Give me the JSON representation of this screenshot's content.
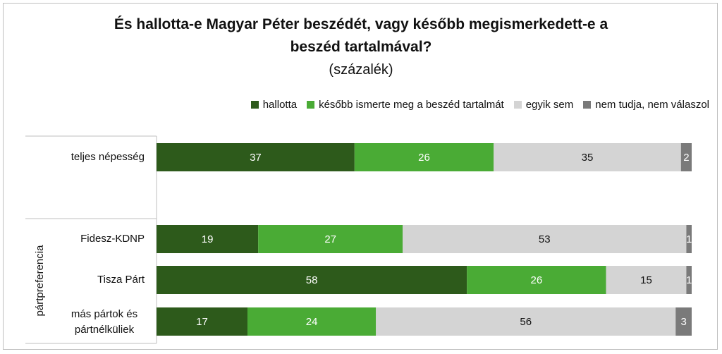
{
  "title_line1": "És hallotta-e Magyar Péter beszédét, vagy később megismerkedett-e a",
  "title_line2": "beszéd tartalmával?",
  "subtitle": "(százalék)",
  "group_label": "pártpreferencia",
  "legend": [
    {
      "label": "hallotta",
      "color": "#2d5a1b"
    },
    {
      "label": "később ismerte meg a beszéd tartalmát",
      "color": "#4aab35"
    },
    {
      "label": "egyik sem",
      "color": "#d4d4d4"
    },
    {
      "label": "nem tudja, nem válaszol",
      "color": "#7a7a7a"
    }
  ],
  "chart_data": {
    "type": "bar",
    "orientation": "horizontal",
    "stacked": true,
    "xlim": [
      0,
      100
    ],
    "categories": [
      "teljes népesség",
      "Fidesz-KDNP",
      "Tisza Párt",
      "más pártok és pártnélküliek"
    ],
    "series": [
      {
        "name": "hallotta",
        "color": "#2d5a1b",
        "values": [
          37,
          19,
          58,
          17
        ]
      },
      {
        "name": "később ismerte meg a beszéd tartalmát",
        "color": "#4aab35",
        "values": [
          26,
          27,
          26,
          24
        ]
      },
      {
        "name": "egyik sem",
        "color": "#d4d4d4",
        "values": [
          35,
          53,
          15,
          56
        ]
      },
      {
        "name": "nem tudja, nem válaszol",
        "color": "#7a7a7a",
        "values": [
          2,
          1,
          1,
          3
        ]
      }
    ],
    "legend_position": "top-right",
    "grid": false
  }
}
